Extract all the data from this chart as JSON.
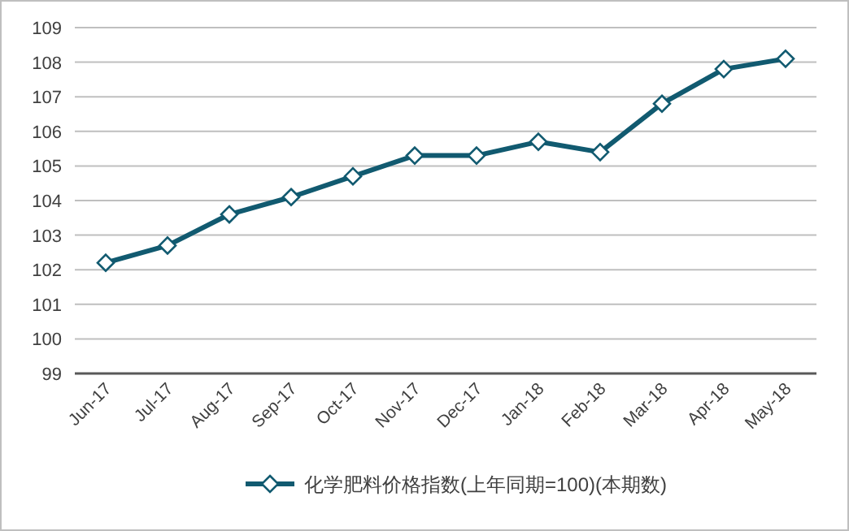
{
  "chart_data": {
    "type": "line",
    "categories": [
      "Jun-17",
      "Jul-17",
      "Aug-17",
      "Sep-17",
      "Oct-17",
      "Nov-17",
      "Dec-17",
      "Jan-18",
      "Feb-18",
      "Mar-18",
      "Apr-18",
      "May-18"
    ],
    "series": [
      {
        "name": "化学肥料价格指数(上年同期=100)(本期数)",
        "color": "#115a70",
        "values": [
          102.2,
          102.7,
          103.6,
          104.1,
          104.7,
          105.3,
          105.3,
          105.7,
          105.4,
          106.8,
          107.8,
          108.1
        ]
      }
    ],
    "ylim": [
      99,
      109
    ],
    "yticks": [
      99,
      100,
      101,
      102,
      103,
      104,
      105,
      106,
      107,
      108,
      109
    ],
    "grid": "y",
    "legend": "bottom",
    "marker": "diamond",
    "line_style": "solid"
  }
}
